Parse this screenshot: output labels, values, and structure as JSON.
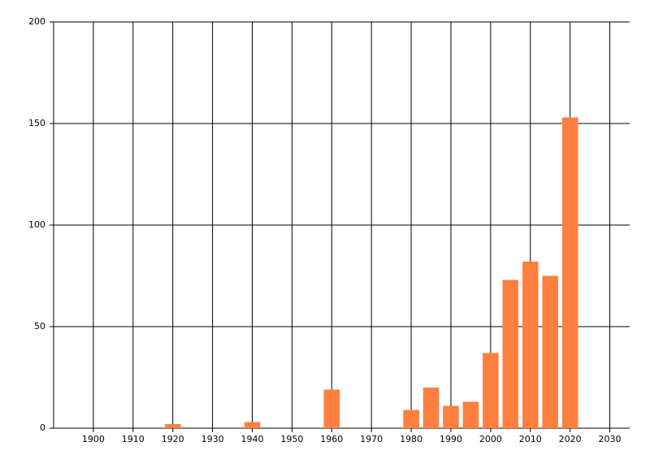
{
  "chart_data": {
    "type": "bar",
    "x": [
      1920,
      1940,
      1960,
      1980,
      1985,
      1990,
      1995,
      2000,
      2005,
      2010,
      2015,
      2020
    ],
    "values": [
      2,
      3,
      19,
      9,
      20,
      11,
      13,
      37,
      73,
      82,
      75,
      153
    ],
    "color": "#ff7f3f",
    "xlim": [
      1890,
      2035
    ],
    "xticks": [
      1900,
      1910,
      1920,
      1930,
      1940,
      1950,
      1960,
      1970,
      1980,
      1990,
      2000,
      2010,
      2020,
      2030
    ],
    "ylim": [
      0,
      200
    ],
    "yticks": [
      0,
      50,
      100,
      150,
      200
    ],
    "grid": true
  }
}
